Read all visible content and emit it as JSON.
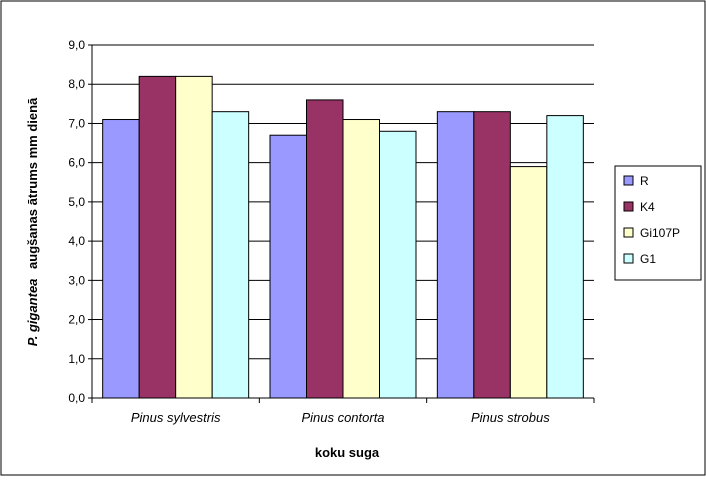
{
  "chart_data": {
    "type": "bar",
    "title": "",
    "xlabel": "koku suga",
    "ylabel_italic": "P. gigantea",
    "ylabel_rest": "augšanas ātrums mm dienā",
    "categories": [
      "Pinus sylvestris",
      "Pinus contorta",
      "Pinus strobus"
    ],
    "series": [
      {
        "name": "R",
        "color": "#9999FF",
        "values": [
          7.1,
          6.7,
          7.3
        ]
      },
      {
        "name": "K4",
        "color": "#993366",
        "values": [
          8.2,
          7.6,
          7.3
        ]
      },
      {
        "name": "Gi107P",
        "color": "#FFFFCC",
        "values": [
          8.2,
          7.1,
          5.9
        ]
      },
      {
        "name": "G1",
        "color": "#CCFFFF",
        "values": [
          7.3,
          6.8,
          7.2
        ]
      }
    ],
    "ylim": [
      0,
      9
    ],
    "yticks": [
      "0,0",
      "1,0",
      "2,0",
      "3,0",
      "4,0",
      "5,0",
      "6,0",
      "7,0",
      "8,0",
      "9,0"
    ],
    "grid": true,
    "legend_position": "right"
  }
}
